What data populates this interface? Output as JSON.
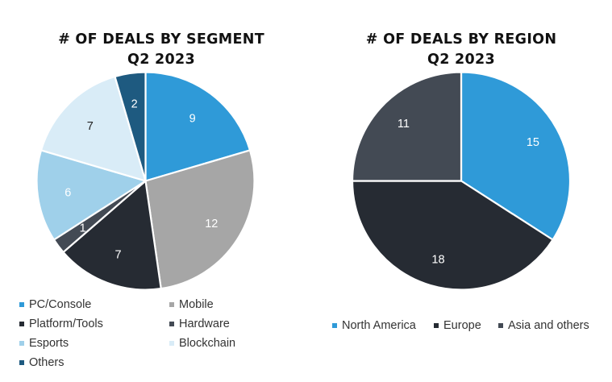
{
  "chart_data": [
    {
      "type": "pie",
      "title": "# OF DEALS BY SEGMENT",
      "subtitle": "Q2 2023",
      "labels": [
        "PC/Console",
        "Mobile",
        "Platform/Tools",
        "Hardware",
        "Esports",
        "Blockchain",
        "Others"
      ],
      "values": [
        9,
        12,
        7,
        1,
        6,
        7,
        2
      ],
      "colors": [
        "#2f9ad8",
        "#a6a6a6",
        "#262b33",
        "#434a54",
        "#9fd0ea",
        "#d9ecf7",
        "#1e5a80"
      ],
      "label_colors": [
        "#ffffff",
        "#ffffff",
        "#ffffff",
        "#ffffff",
        "#ffffff",
        "#222222",
        "#ffffff"
      ],
      "legend_position": "bottom"
    },
    {
      "type": "pie",
      "title": "# OF DEALS BY REGION",
      "subtitle": "Q2 2023",
      "labels": [
        "North America",
        "Europe",
        "Asia and others"
      ],
      "values": [
        15,
        18,
        11
      ],
      "colors": [
        "#2f9ad8",
        "#262b33",
        "#434a54"
      ],
      "label_colors": [
        "#ffffff",
        "#ffffff",
        "#ffffff"
      ],
      "legend_position": "bottom"
    }
  ]
}
